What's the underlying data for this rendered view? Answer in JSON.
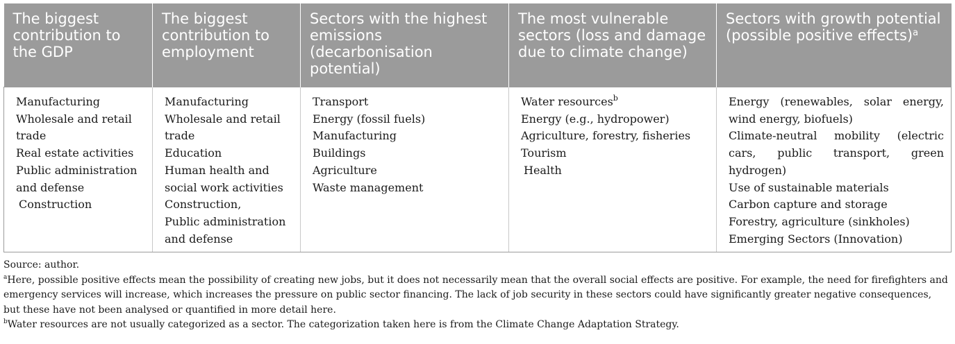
{
  "table": {
    "headers": [
      {
        "text": "The biggest contribution to the GDP",
        "sup": ""
      },
      {
        "text": "The biggest contribution to employment",
        "sup": ""
      },
      {
        "text": "Sectors with the highest emissions (decarbonisation potential)",
        "sup": ""
      },
      {
        "text": "The most vulnerable sectors (loss and damage due to climate change)",
        "sup": ""
      },
      {
        "text": "Sectors with growth potential (possible positive effects)",
        "sup": "a"
      }
    ],
    "columns": [
      [
        "Manufacturing",
        "Wholesale and retail trade",
        "Real estate activities",
        "Public administration and defense",
        "Construction"
      ],
      [
        "Manufacturing",
        "Wholesale and retail trade",
        "Education",
        "Human health and social work activities",
        "Construction,",
        "Public administration and defense"
      ],
      [
        "Transport",
        "Energy (fossil fuels)",
        "Manufacturing",
        "Buildings",
        "Agriculture",
        "Waste management"
      ],
      [
        "Water resources",
        "Energy (e.g., hydropower)",
        "Agriculture, forestry, fisheries",
        "Tourism",
        "Health"
      ],
      [
        "Energy (renewables, solar energy, wind energy, biofuels)",
        "Climate-neutral mobility (electric cars, public transport, green hydrogen)",
        "Use of sustainable materials",
        "Carbon capture and storage",
        "Forestry, agriculture (sinkholes)",
        "Emerging Sectors (Innovation)"
      ]
    ],
    "water_resources_sup": "b"
  },
  "notes": {
    "source": "Source: author.",
    "footnote_a_marker": "a",
    "footnote_a": "Here, possible positive effects mean the possibility of creating new jobs, but it does not necessarily mean that the overall social effects are positive. For example, the need for firefighters and emergency services will increase, which increases the pressure on public sector financing. The lack of job security in these sectors could have significantly greater negative consequences, but these have not been analysed or quantified in more detail here.",
    "footnote_b_marker": "b",
    "footnote_b": "Water resources are not usually categorized as a sector. The categorization taken here is from the Climate Change Adaptation Strategy."
  }
}
